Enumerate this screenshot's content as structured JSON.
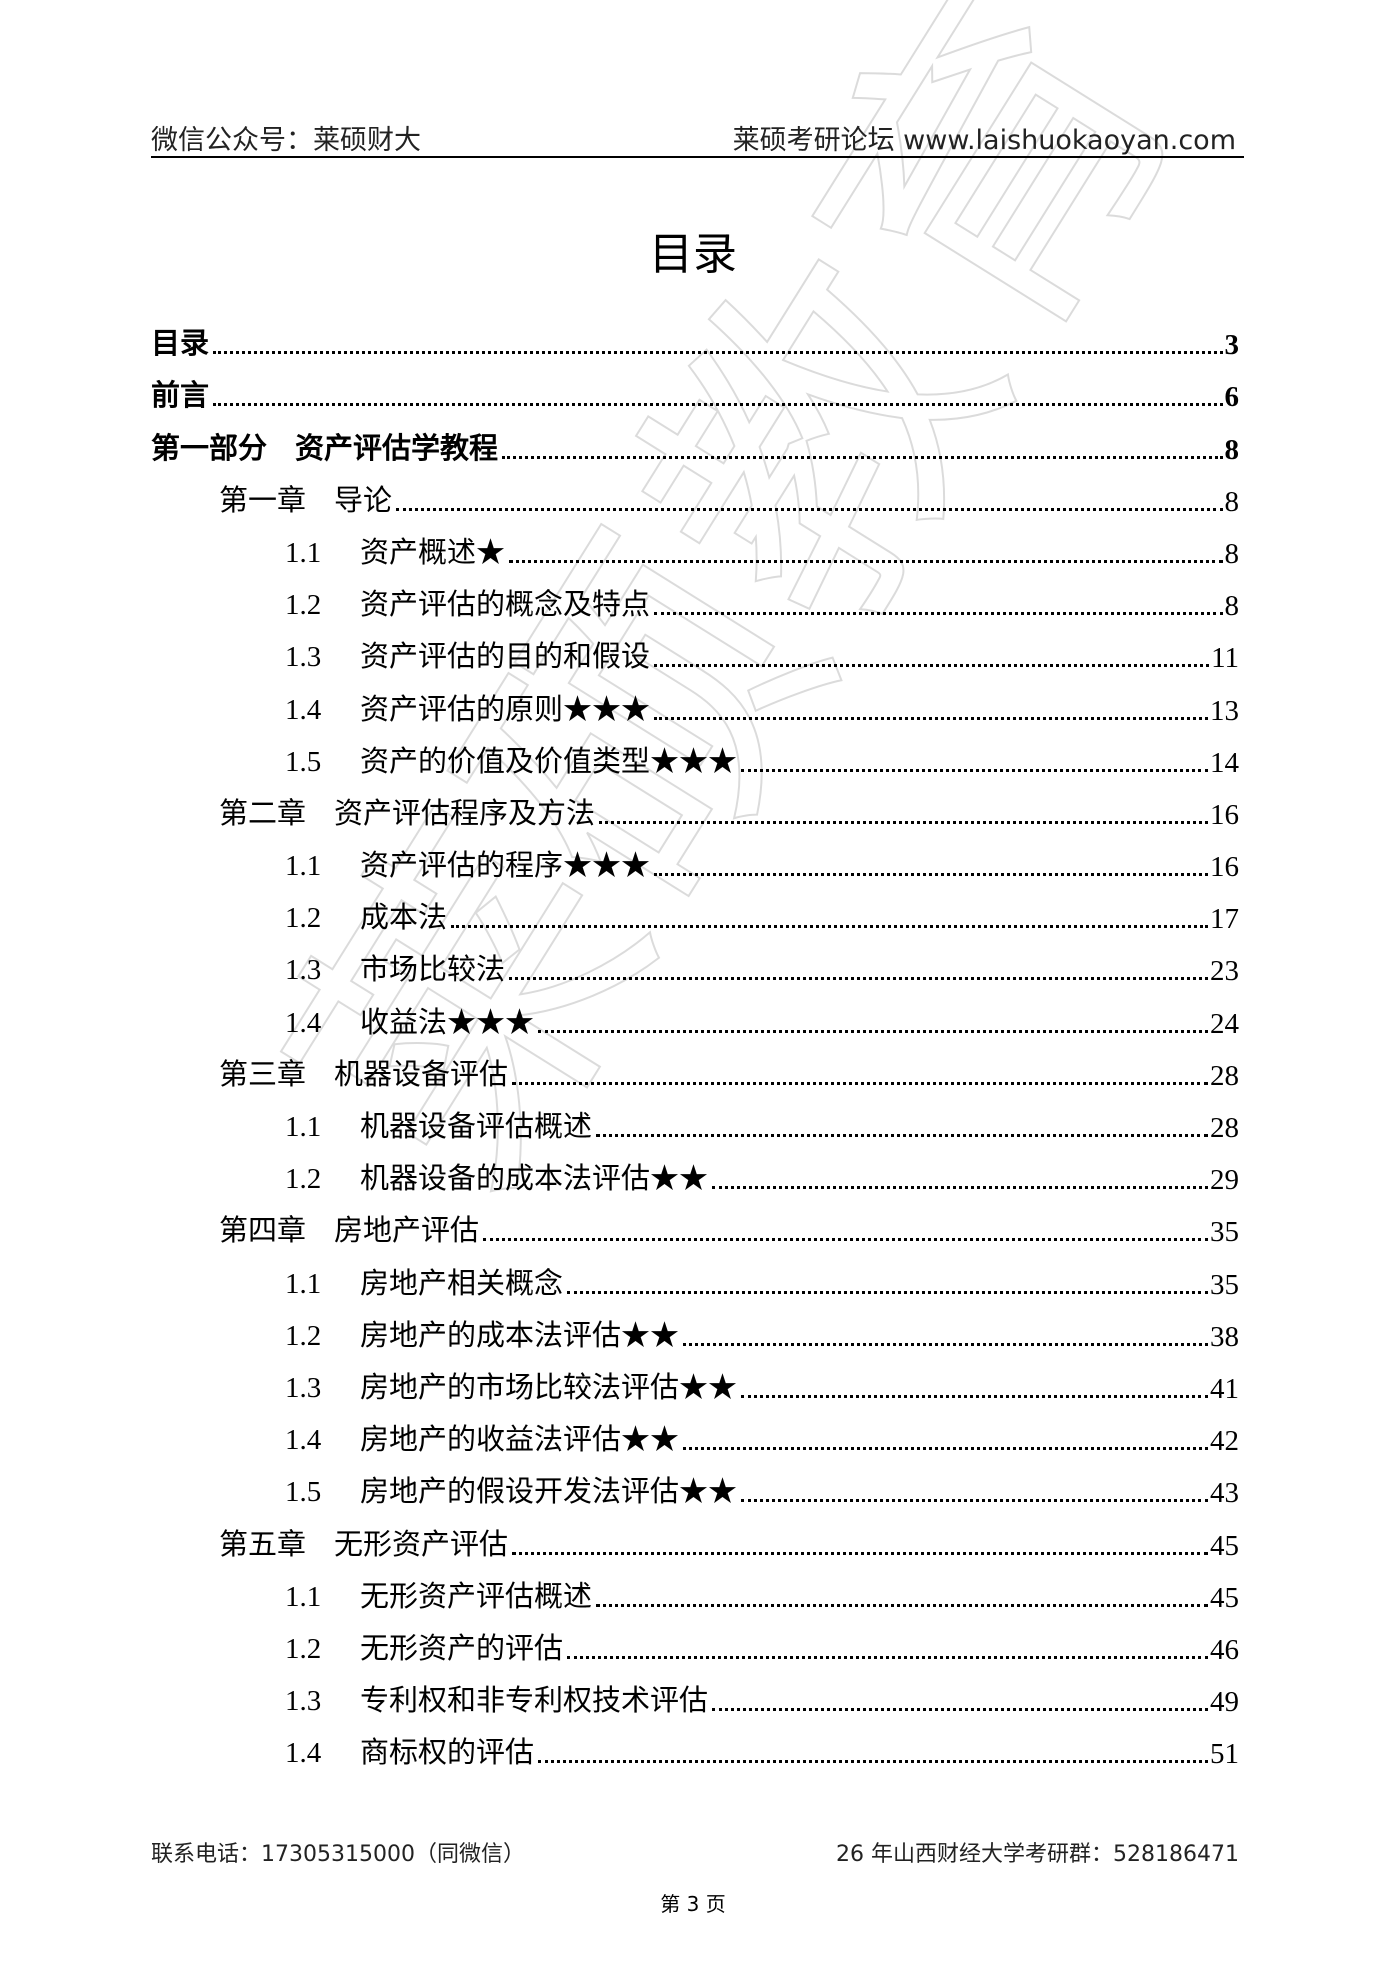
{
  "header": {
    "left": "微信公众号：莱硕财大",
    "right": "莱硕考研论坛 www.laishuokaoyan.com"
  },
  "title": "目录",
  "watermark": "莱硕教育",
  "toc": [
    {
      "level": 0,
      "label": "目录",
      "page": "3"
    },
    {
      "level": 0,
      "label": "前言",
      "page": "6"
    },
    {
      "level": 0,
      "chapter": "第一部分",
      "label": "资产评估学教程",
      "page": "8"
    },
    {
      "level": 1,
      "chapter": "第一章",
      "label": "导论",
      "page": "8"
    },
    {
      "level": 2,
      "num": "1.1",
      "label": "资产概述★",
      "page": "8"
    },
    {
      "level": 2,
      "num": "1.2",
      "label": "资产评估的概念及特点",
      "page": "8"
    },
    {
      "level": 2,
      "num": "1.3",
      "label": "资产评估的目的和假设",
      "page": "11"
    },
    {
      "level": 2,
      "num": "1.4",
      "label": "资产评估的原则★★★",
      "page": "13"
    },
    {
      "level": 2,
      "num": "1.5",
      "label": "资产的价值及价值类型★★★",
      "page": "14"
    },
    {
      "level": 1,
      "chapter": "第二章",
      "label": "资产评估程序及方法",
      "page": "16"
    },
    {
      "level": 2,
      "num": "1.1",
      "label": "资产评估的程序★★★",
      "page": "16"
    },
    {
      "level": 2,
      "num": "1.2",
      "label": "成本法",
      "page": "17"
    },
    {
      "level": 2,
      "num": "1.3",
      "label": "市场比较法",
      "page": "23"
    },
    {
      "level": 2,
      "num": "1.4",
      "label": "收益法★★★",
      "page": "24"
    },
    {
      "level": 1,
      "chapter": "第三章",
      "label": "机器设备评估",
      "page": "28"
    },
    {
      "level": 2,
      "num": "1.1",
      "label": "机器设备评估概述",
      "page": "28"
    },
    {
      "level": 2,
      "num": "1.2",
      "label": "机器设备的成本法评估★★",
      "page": "29"
    },
    {
      "level": 1,
      "chapter": "第四章",
      "label": "房地产评估",
      "page": "35"
    },
    {
      "level": 2,
      "num": "1.1",
      "label": "房地产相关概念",
      "page": "35"
    },
    {
      "level": 2,
      "num": "1.2",
      "label": "房地产的成本法评估★★",
      "page": "38"
    },
    {
      "level": 2,
      "num": "1.3",
      "label": "房地产的市场比较法评估★★",
      "page": "41"
    },
    {
      "level": 2,
      "num": "1.4",
      "label": "房地产的收益法评估★★",
      "page": "42"
    },
    {
      "level": 2,
      "num": "1.5",
      "label": "房地产的假设开发法评估★★",
      "page": "43"
    },
    {
      "level": 1,
      "chapter": "第五章",
      "label": "无形资产评估",
      "page": "45"
    },
    {
      "level": 2,
      "num": "1.1",
      "label": "无形资产评估概述",
      "page": "45"
    },
    {
      "level": 2,
      "num": "1.2",
      "label": "无形资产的评估",
      "page": "46"
    },
    {
      "level": 2,
      "num": "1.3",
      "label": "专利权和非专利权技术评估",
      "page": "49"
    },
    {
      "level": 2,
      "num": "1.4",
      "label": "商标权的评估",
      "page": "51"
    }
  ],
  "footer": {
    "left": "联系电话：17305315000（同微信）",
    "right": "26 年山西财经大学考研群：528186471",
    "page": "第 3 页"
  }
}
